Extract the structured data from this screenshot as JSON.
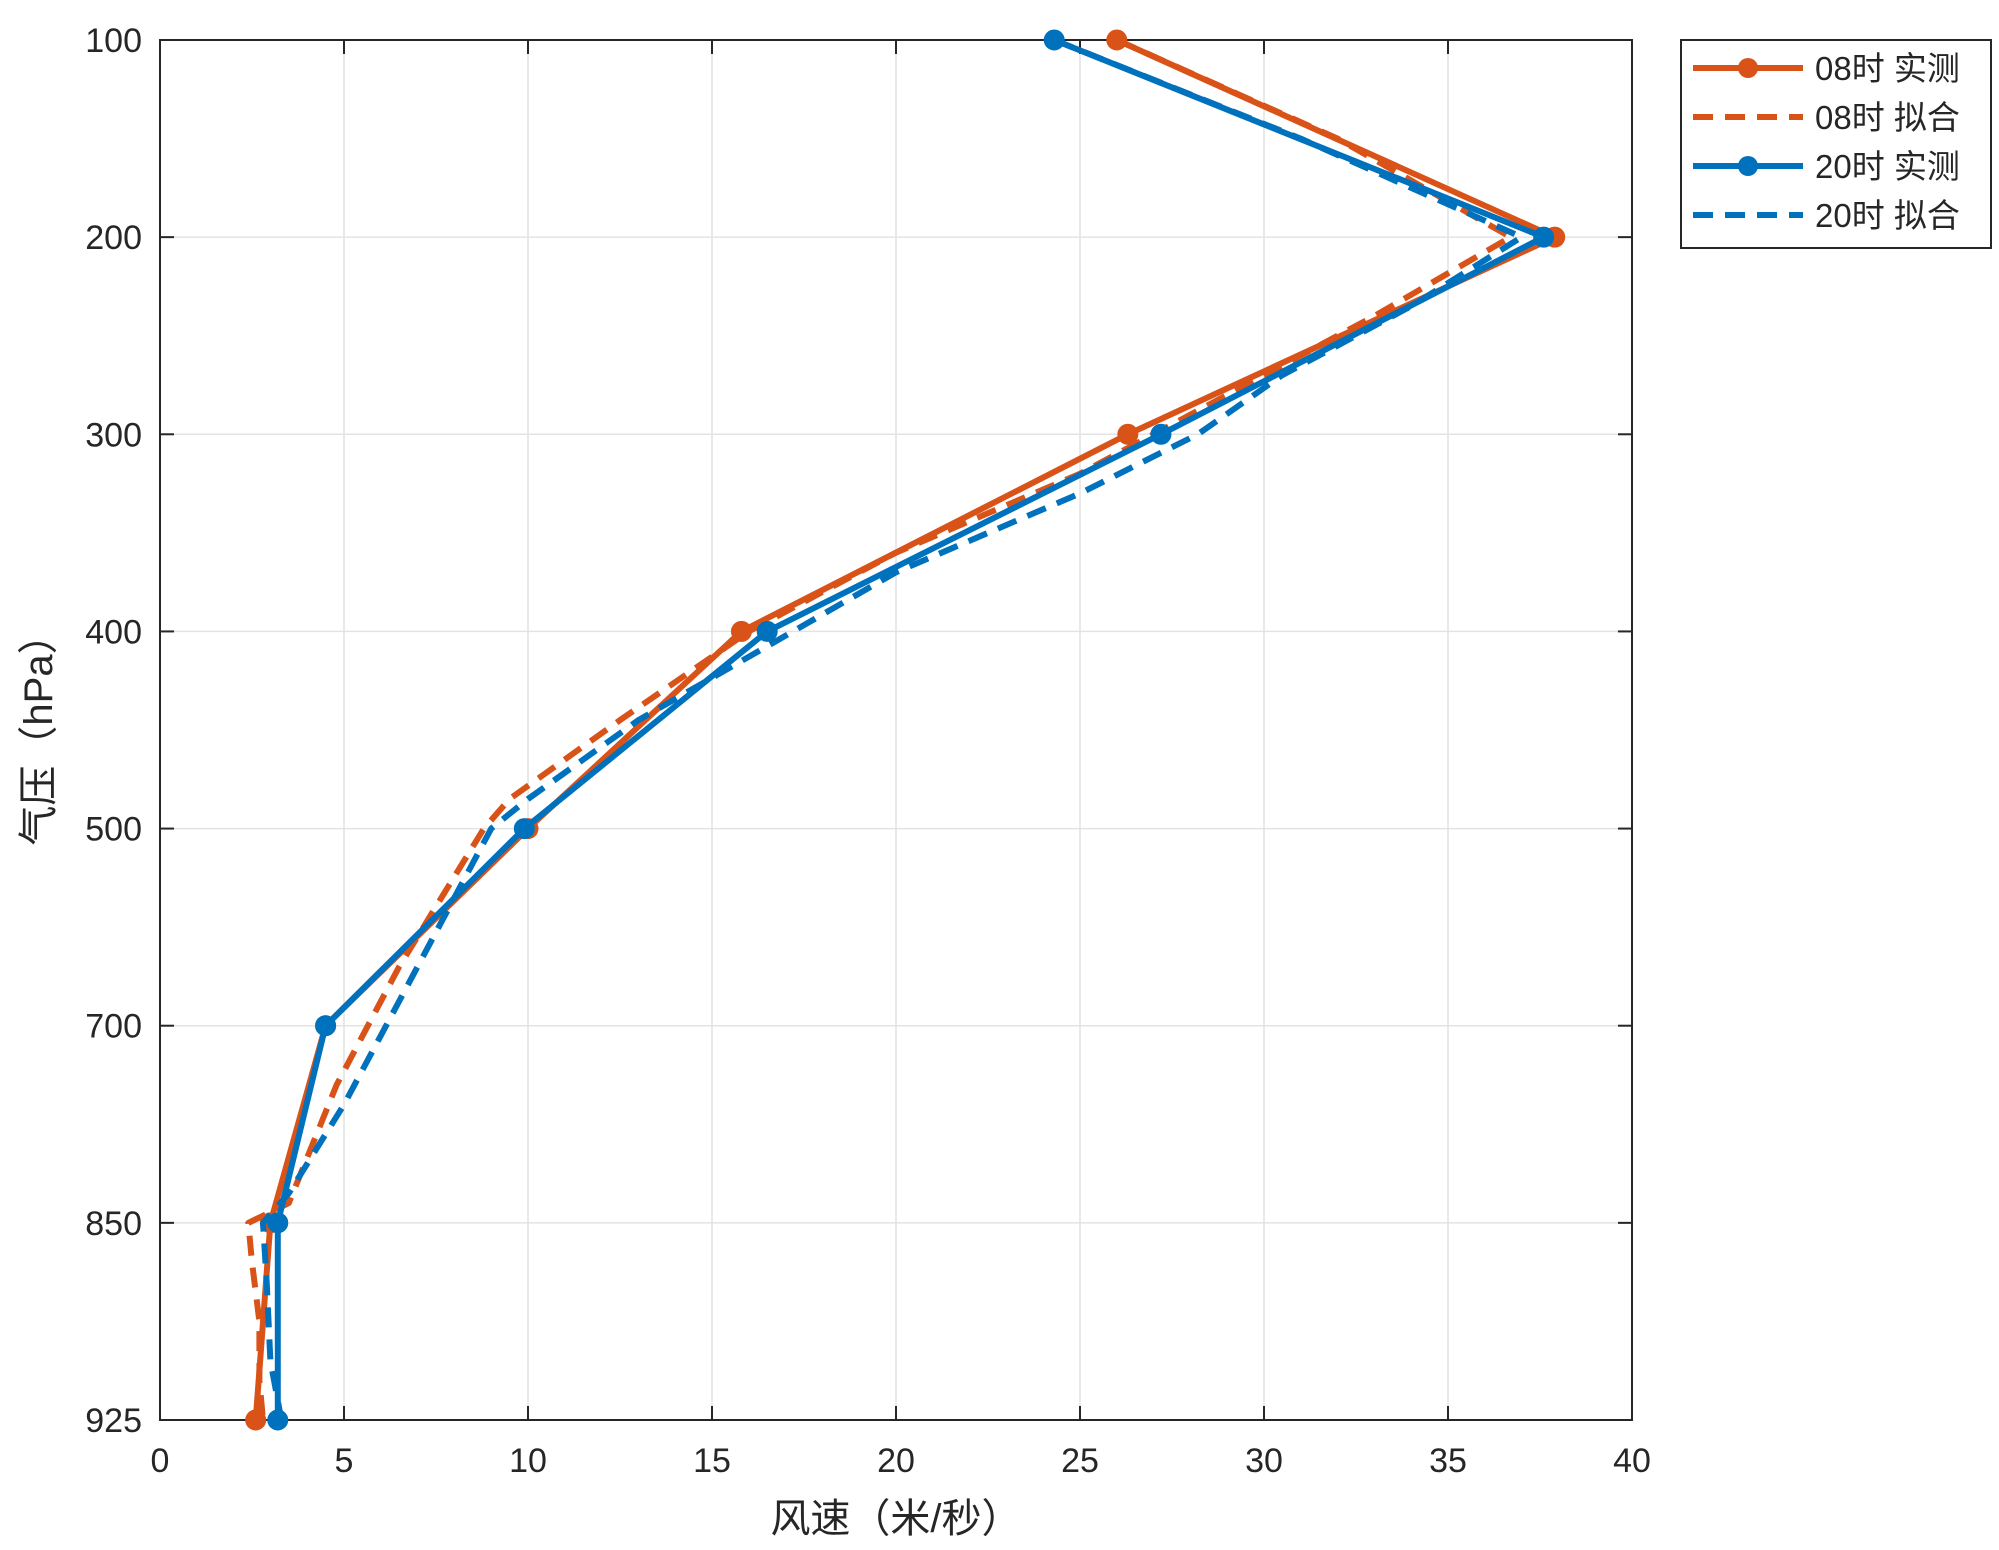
{
  "chart_data": {
    "type": "line",
    "xlabel": "风速（米/秒）",
    "ylabel": "气压（hPa）",
    "xlim": [
      0,
      40
    ],
    "x_ticks": [
      "0",
      "5",
      "10",
      "15",
      "20",
      "25",
      "30",
      "35",
      "40"
    ],
    "y_ticks": [
      "100",
      "200",
      "300",
      "400",
      "500",
      "700",
      "850",
      "925"
    ],
    "y_axis": "categorical-levels, reversed (100 at top, 925 at bottom)",
    "grid": true,
    "legend_position": "outside-top-right",
    "series": [
      {
        "name": "08时 实测",
        "style": "solid-marker",
        "color": "#D95319",
        "points": [
          {
            "x": 26.0,
            "y": "100"
          },
          {
            "x": 37.9,
            "y": "200"
          },
          {
            "x": 26.3,
            "y": "300"
          },
          {
            "x": 15.8,
            "y": "400"
          },
          {
            "x": 10.0,
            "y": "500"
          },
          {
            "x": 4.5,
            "y": "700"
          },
          {
            "x": 3.0,
            "y": "850"
          },
          {
            "x": 2.6,
            "y": "925"
          }
        ]
      },
      {
        "name": "08时 拟合",
        "style": "dashed",
        "color": "#D95319",
        "points": [
          {
            "x": 26.0,
            "y": 1.0
          },
          {
            "x": 32.0,
            "y": 1.5
          },
          {
            "x": 36.7,
            "y": 2.0
          },
          {
            "x": 33.0,
            "y": 2.4
          },
          {
            "x": 29.0,
            "y": 2.8
          },
          {
            "x": 25.0,
            "y": 3.2
          },
          {
            "x": 20.0,
            "y": 3.6
          },
          {
            "x": 16.0,
            "y": 4.0
          },
          {
            "x": 12.5,
            "y": 4.45
          },
          {
            "x": 9.5,
            "y": 4.85
          },
          {
            "x": 8.8,
            "y": 5.0
          },
          {
            "x": 6.5,
            "y": 5.7
          },
          {
            "x": 4.8,
            "y": 6.3
          },
          {
            "x": 3.5,
            "y": 6.9
          },
          {
            "x": 2.4,
            "y": 7.0
          },
          {
            "x": 2.5,
            "y": 7.2
          },
          {
            "x": 2.7,
            "y": 7.5
          },
          {
            "x": 2.7,
            "y": 7.8
          },
          {
            "x": 2.8,
            "y": 8.0
          }
        ]
      },
      {
        "name": "20时 实测",
        "style": "solid-marker",
        "color": "#0072BD",
        "points": [
          {
            "x": 24.3,
            "y": "100"
          },
          {
            "x": 37.6,
            "y": "200"
          },
          {
            "x": 27.2,
            "y": "300"
          },
          {
            "x": 16.5,
            "y": "400"
          },
          {
            "x": 9.9,
            "y": "500"
          },
          {
            "x": 4.5,
            "y": "700"
          },
          {
            "x": 3.2,
            "y": "850"
          },
          {
            "x": 3.2,
            "y": "925"
          }
        ]
      },
      {
        "name": "20时 拟合",
        "style": "dashed",
        "color": "#0072BD",
        "points": [
          {
            "x": 24.3,
            "y": 1.0
          },
          {
            "x": 31.0,
            "y": 1.5
          },
          {
            "x": 37.0,
            "y": 2.0
          },
          {
            "x": 34.0,
            "y": 2.35
          },
          {
            "x": 30.5,
            "y": 2.7
          },
          {
            "x": 28.2,
            "y": 3.0
          },
          {
            "x": 25.0,
            "y": 3.3
          },
          {
            "x": 20.0,
            "y": 3.7
          },
          {
            "x": 17.2,
            "y": 4.0
          },
          {
            "x": 13.0,
            "y": 4.45
          },
          {
            "x": 10.0,
            "y": 4.85
          },
          {
            "x": 9.0,
            "y": 5.0
          },
          {
            "x": 7.0,
            "y": 5.7
          },
          {
            "x": 5.0,
            "y": 6.4
          },
          {
            "x": 3.5,
            "y": 6.85
          },
          {
            "x": 2.8,
            "y": 7.0
          },
          {
            "x": 2.9,
            "y": 7.3
          },
          {
            "x": 3.0,
            "y": 7.7
          },
          {
            "x": 3.3,
            "y": 8.0
          }
        ]
      }
    ]
  }
}
